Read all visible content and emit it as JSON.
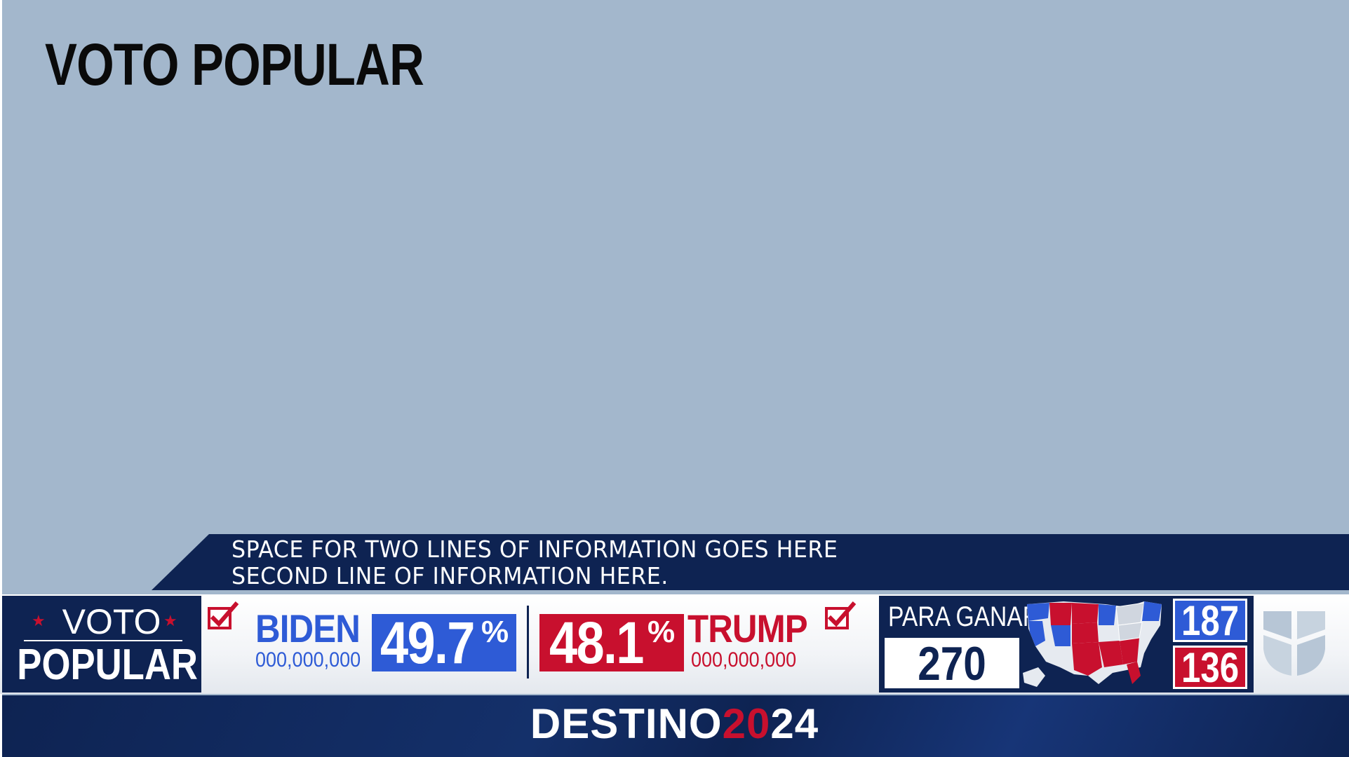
{
  "title": "VOTO POPULAR",
  "ticker": {
    "line1": "SPACE FOR TWO LINES OF INFORMATION GOES HERE",
    "line2": "SECOND LINE OF INFORMATION HERE."
  },
  "results_bar": {
    "label_top": "VOTO",
    "label_bottom": "POPULAR",
    "candidates": [
      {
        "name": "BIDEN",
        "votes": "000,000,000",
        "pct": "49.7",
        "pct_sign": "%",
        "color": "#2e5bd6",
        "checked": true
      },
      {
        "name": "TRUMP",
        "votes": "000,000,000",
        "pct": "48.1",
        "pct_sign": "%",
        "color": "#c8102e",
        "checked": true
      }
    ],
    "to_win_label": "PARA GANAR",
    "to_win_value": "270",
    "electoral_dem": "187",
    "electoral_rep": "136"
  },
  "brand": {
    "word": "DESTINO",
    "year_a": "20",
    "year_b": "24"
  },
  "colors": {
    "navy": "#0e2352",
    "dem_blue": "#2e5bd6",
    "rep_red": "#c8102e",
    "background": "#a3b7cc"
  },
  "icons": [
    "check-icon",
    "star-icon",
    "us-map-icon",
    "univision-logo"
  ]
}
